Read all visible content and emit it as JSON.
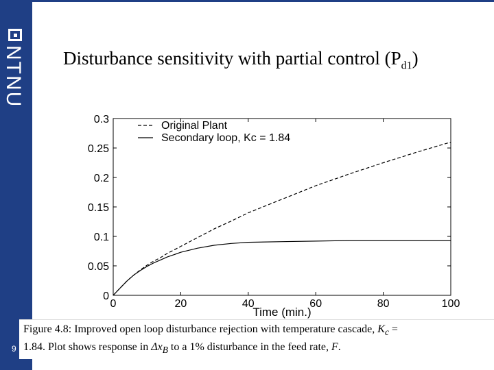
{
  "slide": {
    "title": "Disturbance sensitivity with partial control (P",
    "title_sub": "d1",
    "title_close": ")",
    "logo_text": "NTNU",
    "page_number": "9"
  },
  "caption": {
    "line1_prefix": "Figure 4.8: Improved open loop disturbance rejection with temperature cascade, ",
    "line1_math": "K",
    "line1_math_sub": "c",
    "line1_suffix": " =",
    "line2_prefix": "1.84. Plot shows response in ",
    "line2_math": "Δx",
    "line2_math_sub": "B",
    "line2_mid": " to a 1% disturbance in the feed rate, ",
    "line2_math2": "F",
    "line2_end": "."
  },
  "colors": {
    "brand": "#1f3f85",
    "axis": "#000000",
    "line": "#000000"
  },
  "chart_data": {
    "type": "line",
    "title": "",
    "xlabel": "Time (min.)",
    "ylabel": "",
    "xlim": [
      0,
      100
    ],
    "ylim": [
      0,
      0.3
    ],
    "x_ticks": [
      0,
      20,
      40,
      60,
      80,
      100
    ],
    "x_tick_labels": [
      "0",
      "20",
      "40",
      "60",
      "80",
      "100"
    ],
    "y_ticks": [
      0,
      0.05,
      0.1,
      0.15,
      0.2,
      0.25,
      0.3
    ],
    "y_tick_labels": [
      "0",
      "0.05",
      "0.1",
      "0.15",
      "0.2",
      "0.25",
      "0.3"
    ],
    "grid": false,
    "legend_position": "top-left",
    "series": [
      {
        "name": "Original Plant",
        "style": "dashed",
        "x": [
          0,
          2,
          4,
          6,
          8,
          10,
          12,
          14,
          16,
          18,
          20,
          25,
          30,
          35,
          40,
          50,
          60,
          70,
          80,
          90,
          100
        ],
        "y": [
          0,
          0.012,
          0.024,
          0.034,
          0.043,
          0.051,
          0.058,
          0.064,
          0.071,
          0.077,
          0.083,
          0.098,
          0.113,
          0.126,
          0.14,
          0.163,
          0.186,
          0.206,
          0.225,
          0.243,
          0.26
        ]
      },
      {
        "name": "Secondary loop, Kc = 1.84",
        "style": "solid",
        "x": [
          0,
          2,
          4,
          6,
          8,
          10,
          12,
          14,
          16,
          18,
          20,
          25,
          30,
          35,
          40,
          50,
          60,
          70,
          80,
          90,
          100
        ],
        "y": [
          0,
          0.012,
          0.024,
          0.034,
          0.042,
          0.049,
          0.055,
          0.06,
          0.065,
          0.069,
          0.073,
          0.08,
          0.085,
          0.088,
          0.09,
          0.091,
          0.092,
          0.093,
          0.093,
          0.093,
          0.093
        ]
      }
    ]
  }
}
